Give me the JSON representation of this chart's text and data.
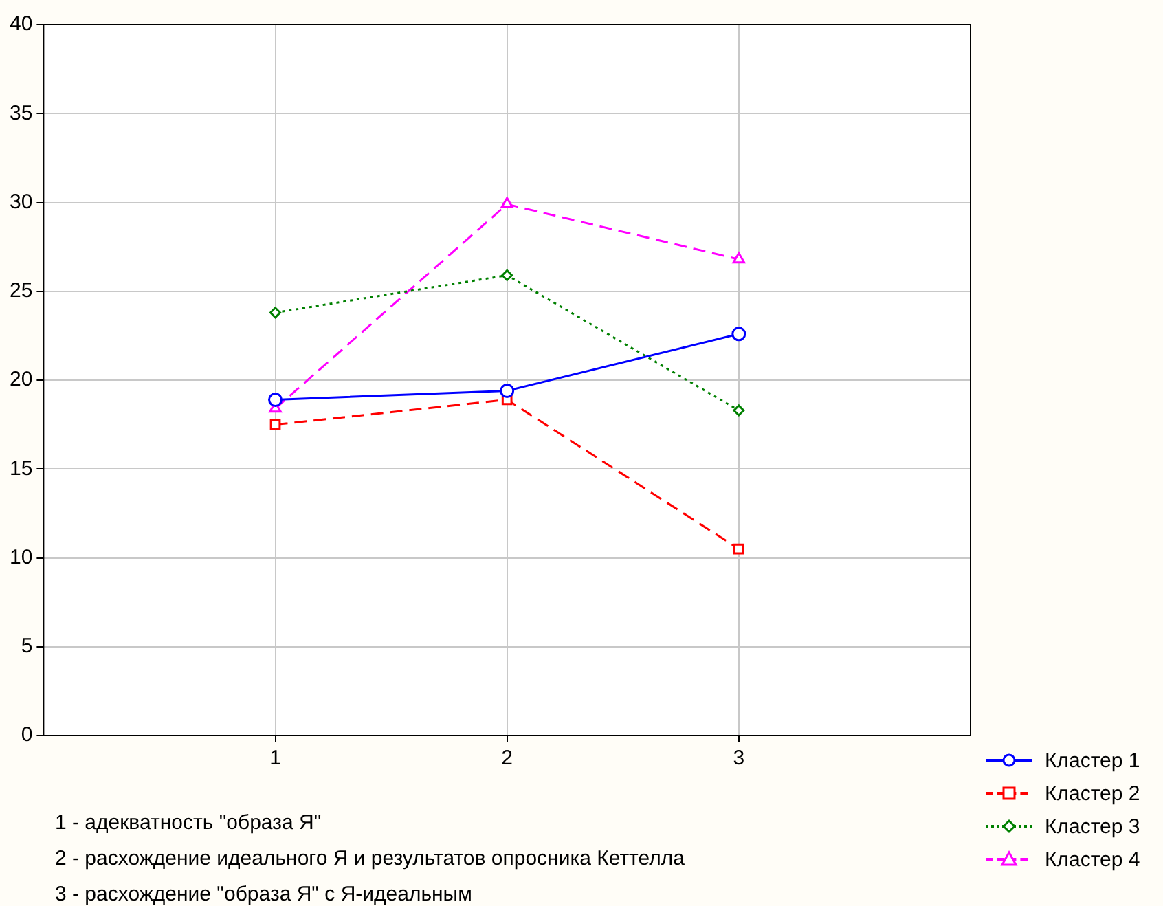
{
  "chart_data": {
    "type": "line",
    "x": [
      1,
      2,
      3
    ],
    "xlim": [
      0,
      4
    ],
    "xticks": [
      1,
      2,
      3
    ],
    "ylim": [
      0,
      40
    ],
    "yticks": [
      0,
      5,
      10,
      15,
      20,
      25,
      30,
      35,
      40
    ],
    "grid": true,
    "legend": "bottom right",
    "series": [
      {
        "name": "Кластер 1",
        "color": "#0000ff",
        "values": [
          18.9,
          19.4,
          22.6
        ],
        "marker": "circle",
        "line_style": "solid"
      },
      {
        "name": "Кластер 2",
        "color": "#ff0000",
        "values": [
          17.5,
          18.9,
          10.5
        ],
        "marker": "square",
        "line_style": "dashed"
      },
      {
        "name": "Кластер 3",
        "color": "#008000",
        "values": [
          23.8,
          25.9,
          18.3
        ],
        "marker": "diamond",
        "line_style": "dotted"
      },
      {
        "name": "Кластер 4",
        "color": "#ff00ff",
        "values": [
          18.4,
          29.9,
          26.8
        ],
        "marker": "triangle",
        "line_style": "dashed"
      }
    ],
    "annotations": [
      "1 - адекватность \"образа Я\"",
      "2 - расхождение идеального Я и результатов опросника Кеттелла",
      "3 - расхождение \"образа Я\" с Я-идеальным"
    ]
  }
}
